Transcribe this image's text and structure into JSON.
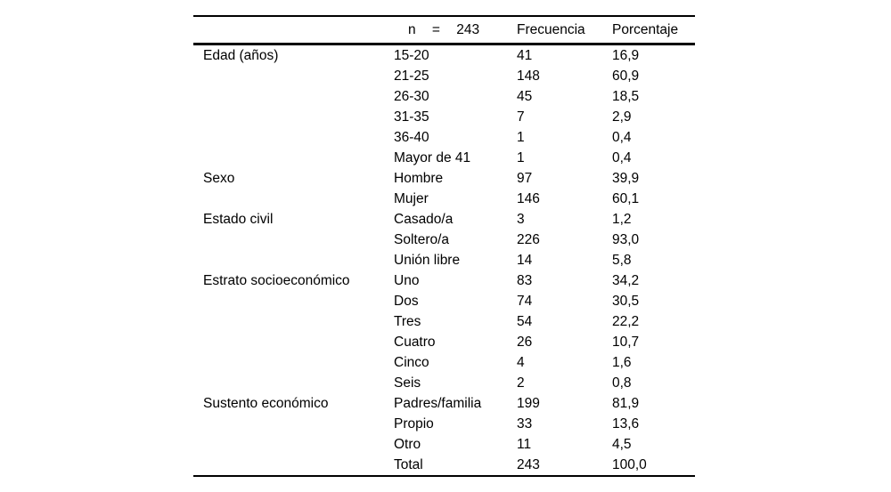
{
  "table": {
    "header": {
      "n_summary": "n = 243",
      "frecuencia": "Frecuencia",
      "porcentaje": "Porcentaje"
    },
    "colors": {
      "text": "#000000",
      "rule": "#000000",
      "background": "#ffffff"
    },
    "rows": [
      {
        "category": "Edad (años)",
        "label": "15-20",
        "freq": "41",
        "pct": "16,9"
      },
      {
        "category": "",
        "label": "21-25",
        "freq": "148",
        "pct": "60,9"
      },
      {
        "category": "",
        "label": "26-30",
        "freq": "45",
        "pct": "18,5"
      },
      {
        "category": "",
        "label": "31-35",
        "freq": "7",
        "pct": "2,9"
      },
      {
        "category": "",
        "label": "36-40",
        "freq": "1",
        "pct": "0,4"
      },
      {
        "category": "",
        "label": "Mayor de 41",
        "freq": "1",
        "pct": "0,4"
      },
      {
        "category": "Sexo",
        "label": "Hombre",
        "freq": "97",
        "pct": "39,9"
      },
      {
        "category": "",
        "label": "Mujer",
        "freq": "146",
        "pct": "60,1"
      },
      {
        "category": "Estado civil",
        "label": "Casado/a",
        "freq": "3",
        "pct": "1,2"
      },
      {
        "category": "",
        "label": "Soltero/a",
        "freq": "226",
        "pct": "93,0"
      },
      {
        "category": "",
        "label": "Unión libre",
        "freq": "14",
        "pct": "5,8"
      },
      {
        "category": "Estrato socioeconómico",
        "label": "Uno",
        "freq": "83",
        "pct": "34,2"
      },
      {
        "category": "",
        "label": "Dos",
        "freq": "74",
        "pct": "30,5"
      },
      {
        "category": "",
        "label": "Tres",
        "freq": "54",
        "pct": "22,2"
      },
      {
        "category": "",
        "label": "Cuatro",
        "freq": "26",
        "pct": "10,7"
      },
      {
        "category": "",
        "label": "Cinco",
        "freq": "4",
        "pct": "1,6"
      },
      {
        "category": "",
        "label": "Seis",
        "freq": "2",
        "pct": "0,8"
      },
      {
        "category": "Sustento económico",
        "label": "Padres/familia",
        "freq": "199",
        "pct": "81,9"
      },
      {
        "category": "",
        "label": "Propio",
        "freq": "33",
        "pct": "13,6"
      },
      {
        "category": "",
        "label": "Otro",
        "freq": "11",
        "pct": "4,5"
      },
      {
        "category": "",
        "label": "Total",
        "freq": "243",
        "pct": "100,0"
      }
    ]
  }
}
